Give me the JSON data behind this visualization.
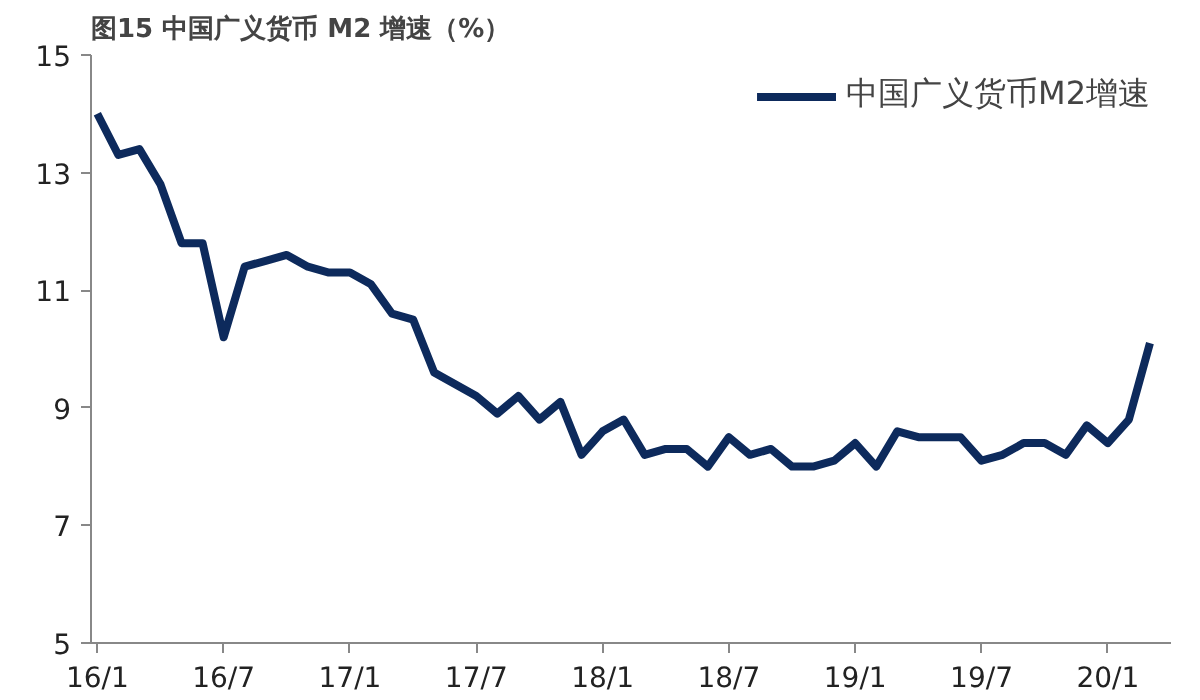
{
  "chart_data": {
    "type": "line",
    "title": "图15 中国广义货币 M2 增速（%）",
    "categories": [
      "16/1",
      null,
      null,
      null,
      null,
      null,
      "16/7",
      null,
      null,
      null,
      null,
      null,
      "17/1",
      null,
      null,
      null,
      null,
      null,
      "17/7",
      null,
      null,
      null,
      null,
      null,
      "18/1",
      null,
      null,
      null,
      null,
      null,
      "18/7",
      null,
      null,
      null,
      null,
      null,
      "19/1",
      null,
      null,
      null,
      null,
      null,
      "19/7",
      null,
      null,
      null,
      null,
      null,
      "20/1",
      null,
      null
    ],
    "series": [
      {
        "name": "中国广义货币M2增速",
        "color": "#0d2a5c",
        "values": [
          14.0,
          13.3,
          13.4,
          12.8,
          11.8,
          11.8,
          10.2,
          11.4,
          11.5,
          11.6,
          11.4,
          11.3,
          11.3,
          11.1,
          10.6,
          10.5,
          9.6,
          9.4,
          9.2,
          8.9,
          9.2,
          8.8,
          9.1,
          8.2,
          8.6,
          8.8,
          8.2,
          8.3,
          8.3,
          8.0,
          8.5,
          8.2,
          8.3,
          8.0,
          8.0,
          8.1,
          8.4,
          8.0,
          8.6,
          8.5,
          8.5,
          8.5,
          8.1,
          8.2,
          8.4,
          8.4,
          8.2,
          8.7,
          8.4,
          8.8,
          10.1
        ]
      }
    ],
    "ylim": [
      5,
      15
    ],
    "yticks": [
      5,
      7,
      9,
      11,
      13,
      15
    ],
    "grid": false,
    "legend": "top right",
    "marker": "none",
    "line_style": "solid"
  }
}
